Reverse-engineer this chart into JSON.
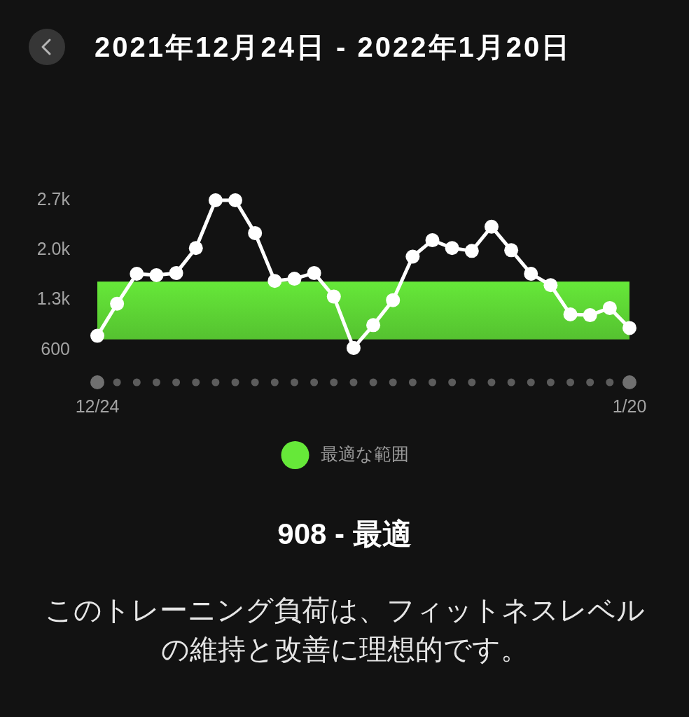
{
  "chart_data": {
    "type": "line",
    "title": "2021年12月24日 - 2022年1月20日",
    "x": [
      "2021-12-24",
      "2021-12-25",
      "2021-12-26",
      "2021-12-27",
      "2021-12-28",
      "2021-12-29",
      "2021-12-30",
      "2021-12-31",
      "2022-01-01",
      "2022-01-02",
      "2022-01-03",
      "2022-01-04",
      "2022-01-05",
      "2022-01-06",
      "2022-01-07",
      "2022-01-08",
      "2022-01-09",
      "2022-01-10",
      "2022-01-11",
      "2022-01-12",
      "2022-01-13",
      "2022-01-14",
      "2022-01-15",
      "2022-01-16",
      "2022-01-17",
      "2022-01-18",
      "2022-01-19",
      "2022-01-20"
    ],
    "series": [
      {
        "color": "#ffffff",
        "values": [
          800,
          1250,
          1670,
          1650,
          1680,
          2030,
          2700,
          2700,
          2240,
          1570,
          1600,
          1680,
          1350,
          630,
          950,
          1300,
          1910,
          2140,
          2030,
          1990,
          2330,
          2000,
          1670,
          1510,
          1100,
          1090,
          1190,
          910
        ]
      }
    ],
    "xlim": [
      "2021-12-24",
      "2022-01-20"
    ],
    "xticks": [
      {
        "value": "2021-12-24",
        "label": "12/24"
      },
      {
        "value": "2022-01-20",
        "label": "1/20"
      }
    ],
    "ylim": [
      600,
      2700
    ],
    "yticks": [
      600,
      {
        "value": 1300,
        "label": "1.3k"
      },
      {
        "value": 2000,
        "label": "2.0k"
      },
      {
        "value": 2700,
        "label": "2.7k"
      }
    ],
    "bands": [
      {
        "axis": "y",
        "from": 750,
        "to": 1560,
        "label": "最適な範囲",
        "color": "#5fd835"
      }
    ],
    "legend": "bottom",
    "marker": "circle",
    "line_style": "solid",
    "annotations": [
      "908 - 最適",
      "このトレーニング負荷は、フィットネスレベルの維持と改善に理想的です。"
    ]
  }
}
